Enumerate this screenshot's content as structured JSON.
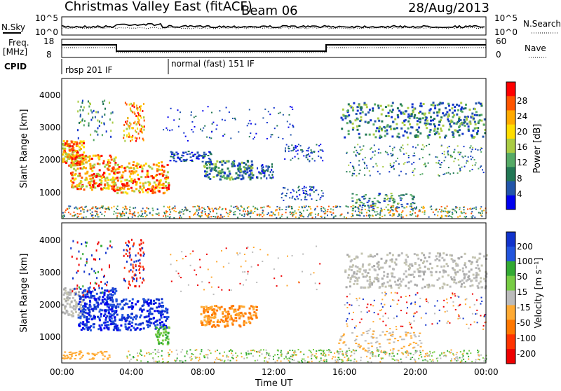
{
  "header": {
    "title": "Christmas Valley East (fitACF)",
    "beam": "Beam 06",
    "date": "28/Aug/2013"
  },
  "status_panel": {
    "nsky_label": "N.Sky",
    "nsky_ticks": [
      "10^5",
      "10^0"
    ],
    "nsearch_label": "N.Search",
    "nsearch_ticks": [
      "10^5",
      "10^0"
    ],
    "freq_label": "Freq.",
    "freq_unit": "[MHz]",
    "freq_ticks": [
      "18",
      "8"
    ],
    "nave_label": "Nave",
    "nave_ticks": [
      "60",
      "0"
    ],
    "cpid_label": "CPID",
    "cpid_modes": [
      "rbsp 201 IF",
      "normal (fast) 151 IF"
    ]
  },
  "chart_data": [
    {
      "type": "heatmap",
      "ylabel": "Slant Range [km]",
      "yticks": [
        "4000",
        "3000",
        "2000",
        "1000"
      ],
      "ylim": [
        180,
        4500
      ],
      "xticks": [
        "00:00",
        "04:00",
        "08:00",
        "12:00",
        "16:00",
        "20:00",
        "00:00"
      ],
      "colorbar": {
        "label": "Power [dB]",
        "ticks": [
          "28",
          "24",
          "20",
          "16",
          "12",
          "8",
          "4"
        ],
        "colors": [
          "#ff0000",
          "#ff5500",
          "#ffaa00",
          "#ffdd00",
          "#aacc44",
          "#55aa66",
          "#227755",
          "#2255aa",
          "#0000ee"
        ]
      }
    },
    {
      "type": "heatmap",
      "ylabel": "Slant Range [km]",
      "yticks": [
        "4000",
        "3000",
        "2000",
        "1000"
      ],
      "ylim": [
        180,
        4500
      ],
      "xticks": [
        "00:00",
        "04:00",
        "08:00",
        "12:00",
        "16:00",
        "20:00",
        "00:00"
      ],
      "xlabel": "Time UT",
      "colorbar": {
        "label": "Velocity [m s⁻¹]",
        "ticks": [
          "200",
          "100",
          "50",
          "15",
          "-15",
          "-50",
          "-100",
          "-200"
        ],
        "colors": [
          "#1133cc",
          "#2255dd",
          "#33aa33",
          "#77cc44",
          "#bbbbbb",
          "#ffaa33",
          "#ff7700",
          "#ff3300",
          "#ee0000"
        ]
      }
    }
  ]
}
